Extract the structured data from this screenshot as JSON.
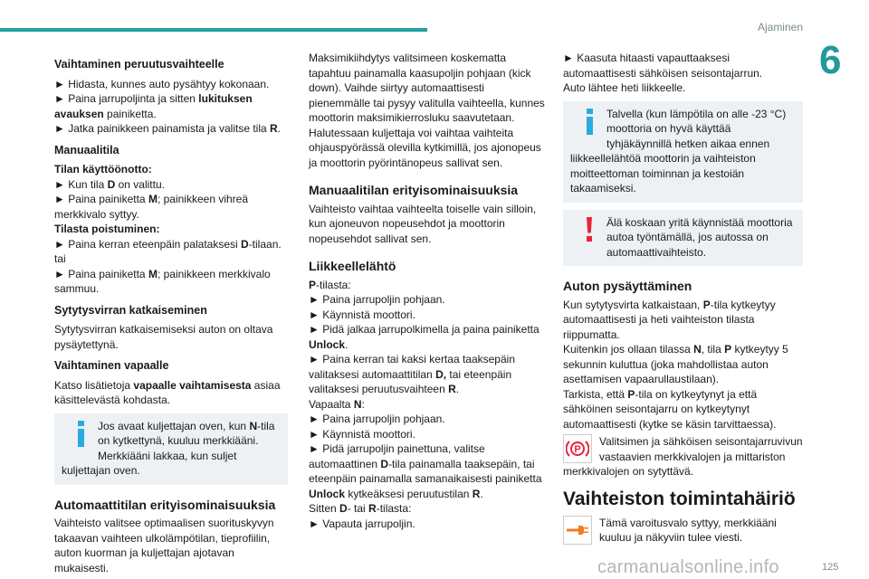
{
  "header": {
    "section": "Ajaminen",
    "chapter": "6"
  },
  "footer": {
    "page_number": "125",
    "watermark": "carmanualsonline.info"
  },
  "colors": {
    "accent": "#22a0a0",
    "info": "#29abe2",
    "warning": "#e8233c",
    "note_bg": "#eef1f3",
    "wrench": "#f47b20"
  },
  "columns": [
    [
      {
        "type": "h3",
        "text": "Vaihtaminen peruutusvaihteelle"
      },
      {
        "type": "p",
        "lines": [
          [
            {
              "t": "► Hidasta, kunnes auto pysähtyy kokonaan."
            }
          ],
          [
            {
              "t": "► Paina jarrupoljinta ja sitten "
            },
            {
              "t": "lukituksen avauksen",
              "b": true
            },
            {
              "t": " painiketta."
            }
          ],
          [
            {
              "t": "► Jatka painikkeen painamista ja valitse tila "
            },
            {
              "t": "R",
              "b": true
            },
            {
              "t": "."
            }
          ]
        ]
      },
      {
        "type": "h3",
        "text": "Manuaalitila"
      },
      {
        "type": "p",
        "lines": [
          [
            {
              "t": "Tilan käyttöönotto:",
              "b": true
            }
          ],
          [
            {
              "t": "► Kun tila "
            },
            {
              "t": "D",
              "b": true
            },
            {
              "t": " on valittu."
            }
          ],
          [
            {
              "t": "► Paina painiketta "
            },
            {
              "t": "M",
              "b": true
            },
            {
              "t": "; painikkeen vihreä merkkivalo syttyy."
            }
          ],
          [
            {
              "t": "Tilasta poistuminen:",
              "b": true
            }
          ],
          [
            {
              "t": "► Paina kerran eteenpäin palataksesi "
            },
            {
              "t": "D",
              "b": true
            },
            {
              "t": "-tilaan."
            }
          ],
          [
            {
              "t": "tai"
            }
          ],
          [
            {
              "t": "► Paina painiketta "
            },
            {
              "t": "M",
              "b": true
            },
            {
              "t": "; painikkeen merkkivalo sammuu."
            }
          ]
        ]
      },
      {
        "type": "h3",
        "text": "Sytytysvirran katkaiseminen"
      },
      {
        "type": "p",
        "lines": [
          [
            {
              "t": "Sytytysvirran katkaisemiseksi auton on oltava pysäytettynä."
            }
          ]
        ]
      },
      {
        "type": "h3",
        "text": "Vaihtaminen vapaalle"
      },
      {
        "type": "p",
        "lines": [
          [
            {
              "t": "Katso lisätietoja "
            },
            {
              "t": "vapaalle vaihtamisesta",
              "b": true
            },
            {
              "t": " asiaa käsittelevästä kohdasta."
            }
          ]
        ]
      },
      {
        "type": "note",
        "icon": "info",
        "lines": [
          [
            {
              "t": "Jos avaat kuljettajan oven, kun "
            },
            {
              "t": "N",
              "b": true
            },
            {
              "t": "-tila on kytkettynä, kuuluu merkkiääni. Merkkiääni lakkaa, kun suljet kuljettajan oven."
            }
          ]
        ]
      },
      {
        "type": "h2",
        "text": "Automaattitilan erityisominaisuuksia"
      },
      {
        "type": "p",
        "lines": [
          [
            {
              "t": "Vaihteisto valitsee optimaalisen suorituskyvyn takaavan vaihteen ulkolämpötilan, tieprofiilin, auton kuorman ja kuljettajan ajotavan mukaisesti."
            }
          ]
        ]
      }
    ],
    [
      {
        "type": "p",
        "lines": [
          [
            {
              "t": "Maksimikiihdytys valitsimeen koskematta tapahtuu painamalla kaasupoljin pohjaan (kick down). Vaihde siirtyy automaattisesti pienemmälle tai pysyy valitulla vaihteella, kunnes moottorin maksimikierrosluku saavutetaan."
            }
          ],
          [
            {
              "t": "Halutessaan kuljettaja voi vaihtaa vaihteita ohjauspyörässä olevilla kytkimillä, jos ajonopeus ja moottorin pyörintänopeus sallivat sen."
            }
          ]
        ]
      },
      {
        "type": "h2",
        "text": "Manuaalitilan erityisominaisuuksia"
      },
      {
        "type": "p",
        "lines": [
          [
            {
              "t": "Vaihteisto vaihtaa vaihteelta toiselle vain silloin, kun ajoneuvon nopeusehdot ja moottorin nopeusehdot sallivat sen."
            }
          ]
        ]
      },
      {
        "type": "h2",
        "text": "Liikkeellelähtö"
      },
      {
        "type": "p",
        "lines": [
          [
            {
              "t": "P",
              "b": true
            },
            {
              "t": "-tilasta:"
            }
          ],
          [
            {
              "t": "► Paina jarrupoljin pohjaan."
            }
          ],
          [
            {
              "t": "► Käynnistä moottori."
            }
          ],
          [
            {
              "t": "► Pidä jalkaa jarrupolkimella ja paina painiketta "
            },
            {
              "t": "Unlock",
              "b": true
            },
            {
              "t": "."
            }
          ],
          [
            {
              "t": "► Paina kerran tai kaksi kertaa taaksepäin valitaksesi automaattitilan "
            },
            {
              "t": "D,",
              "b": true
            },
            {
              "t": " tai eteenpäin valitaksesi peruutusvaihteen "
            },
            {
              "t": "R",
              "b": true
            },
            {
              "t": "."
            }
          ],
          [
            {
              "t": "Vapaalta "
            },
            {
              "t": "N",
              "b": true
            },
            {
              "t": ":"
            }
          ],
          [
            {
              "t": "► Paina jarrupoljin pohjaan."
            }
          ],
          [
            {
              "t": "► Käynnistä moottori."
            }
          ],
          [
            {
              "t": "► Pidä jarrupoljin painettuna, valitse automaattinen "
            },
            {
              "t": "D",
              "b": true
            },
            {
              "t": "-tila painamalla taaksepäin, tai eteenpäin painamalla samanaikaisesti painiketta "
            },
            {
              "t": "Unlock",
              "b": true
            },
            {
              "t": " kytkeäksesi peruutustilan "
            },
            {
              "t": "R",
              "b": true
            },
            {
              "t": "."
            }
          ],
          [
            {
              "t": "Sitten "
            },
            {
              "t": "D",
              "b": true
            },
            {
              "t": "- tai "
            },
            {
              "t": "R",
              "b": true
            },
            {
              "t": "-tilasta:"
            }
          ],
          [
            {
              "t": "► Vapauta jarrupoljin."
            }
          ]
        ]
      }
    ],
    [
      {
        "type": "p",
        "lines": [
          [
            {
              "t": "► Kaasuta hitaasti vapauttaaksesi automaattisesti sähköisen seisontajarrun."
            }
          ],
          [
            {
              "t": "Auto lähtee heti liikkeelle."
            }
          ]
        ]
      },
      {
        "type": "note",
        "icon": "info",
        "lines": [
          [
            {
              "t": "Talvella (kun lämpötila on alle -23 °C) moottoria on hyvä käyttää tyhjäkäynnillä hetken aikaa ennen liikkeellelähtöä moottorin ja vaihteiston moitteettoman toiminnan ja kestoiän takaamiseksi."
            }
          ]
        ]
      },
      {
        "type": "note",
        "icon": "warning",
        "lines": [
          [
            {
              "t": "Älä koskaan yritä käynnistää moottoria autoa työntämällä, jos autossa on automaattivaihteisto."
            }
          ]
        ]
      },
      {
        "type": "h2",
        "text": "Auton pysäyttäminen"
      },
      {
        "type": "p",
        "lines": [
          [
            {
              "t": "Kun sytytysvirta katkaistaan, "
            },
            {
              "t": "P",
              "b": true
            },
            {
              "t": "-tila kytkeytyy automaattisesti ja heti vaihteiston tilasta riippumatta."
            }
          ],
          [
            {
              "t": "Kuitenkin jos ollaan tilassa "
            },
            {
              "t": "N",
              "b": true
            },
            {
              "t": ", tila "
            },
            {
              "t": "P",
              "b": true
            },
            {
              "t": " kytkeytyy 5 sekunnin kuluttua (joka mahdollistaa auton asettamisen vapaarullaustilaan)."
            }
          ],
          [
            {
              "t": "Tarkista, että "
            },
            {
              "t": "P",
              "b": true
            },
            {
              "t": "-tila on kytkeytynyt ja että sähköinen seisontajarru on kytkeytynyt automaattisesti (kytke se käsin tarvittaessa)."
            }
          ]
        ]
      },
      {
        "type": "iconpara",
        "icon": "parking-brake",
        "lines": [
          [
            {
              "t": "Valitsimen ja sähköisen seisontajarruvivun vastaavien merkkivalojen ja mittariston merkkivalojen on sytyttävä."
            }
          ]
        ]
      },
      {
        "type": "h1",
        "text": "Vaihteiston toimintahäiriö"
      },
      {
        "type": "iconpara",
        "icon": "wrench",
        "lines": [
          [
            {
              "t": "Tämä varoitusvalo syttyy, merkkiääni kuuluu ja näkyviin tulee viesti."
            }
          ]
        ]
      }
    ]
  ]
}
